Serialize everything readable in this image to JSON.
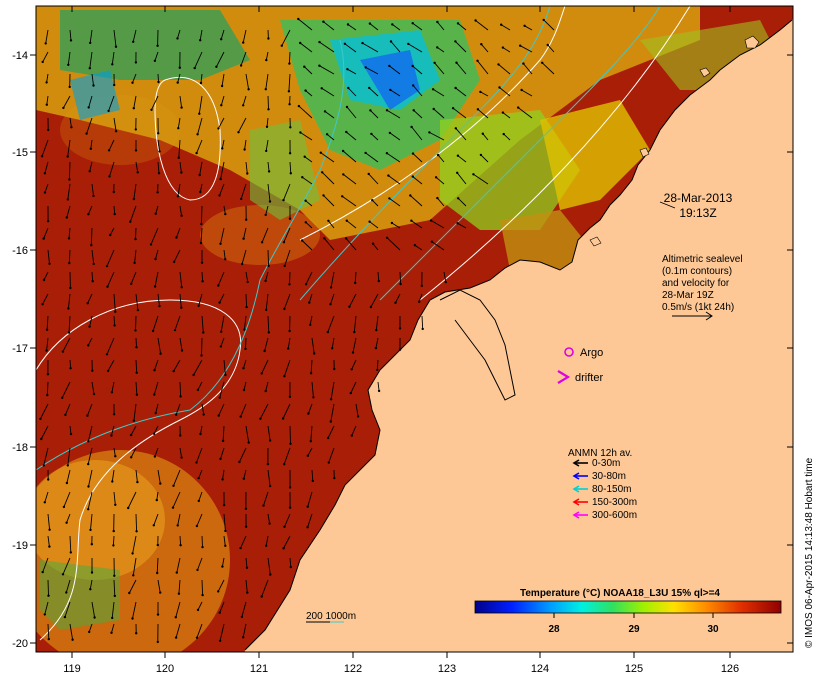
{
  "axes": {
    "lon_ticks": [
      "119",
      "120",
      "121",
      "122",
      "123",
      "124",
      "125",
      "126"
    ],
    "lat_ticks": [
      "-14",
      "-15",
      "-16",
      "-17",
      "-18",
      "-19",
      "-20"
    ]
  },
  "annotations": {
    "date": "28-Mar-2013",
    "time": "19:13Z",
    "altimetry_lines": [
      "Altimetric sealevel",
      "(0.1m contours)",
      "and velocity for",
      "28-Mar 19Z",
      "0.5m/s (1kt 24h)"
    ],
    "argo_label": "Argo",
    "drifter_label": "drifter",
    "depth_contours_label": "200  1000m"
  },
  "legend": {
    "title": "ANMN 12h av.",
    "items": [
      {
        "label": "0-30m",
        "color": "#000000"
      },
      {
        "label": "30-80m",
        "color": "#0000ff"
      },
      {
        "label": "80-150m",
        "color": "#00d0d0"
      },
      {
        "label": "150-300m",
        "color": "#ff0000"
      },
      {
        "label": "300-600m",
        "color": "#ff00ff"
      }
    ]
  },
  "colorbar": {
    "title": "Temperature (°C) NOAA18_L3U 15% ql>=4",
    "ticks": [
      "28",
      "29",
      "30"
    ]
  },
  "credit": "© IMOS 06-Apr-2015 14:13:48 Hobart time",
  "colors": {
    "land": "#fdc896",
    "sea_warm": "#a81e06",
    "argo": "#e000e0",
    "drifter": "#e000e0"
  }
}
